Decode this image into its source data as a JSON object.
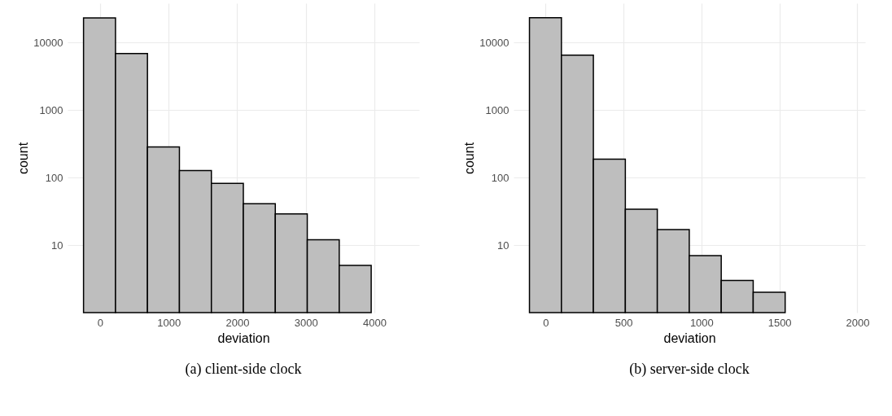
{
  "chart_data": [
    {
      "type": "histogram",
      "title": "(a) client-side clock",
      "xlabel": "deviation",
      "ylabel": "count",
      "log": "y",
      "grid": true,
      "color": "#bebebe",
      "bins": [
        -240,
        226,
        692,
        1158,
        1624,
        2090,
        2556,
        3022,
        3488,
        3954,
        4420
      ],
      "values": [
        23000,
        6850,
        284,
        127,
        82,
        41,
        29,
        12,
        5,
        null
      ],
      "xlim": [
        -473,
        4653
      ],
      "xticks": [
        0,
        1000,
        2000,
        3000,
        4000
      ],
      "ylim": [
        1,
        38000
      ],
      "yticks": [
        10,
        100,
        1000,
        10000
      ]
    },
    {
      "type": "histogram",
      "title": "(b) server-side clock",
      "xlabel": "deviation",
      "ylabel": "count",
      "log": "y",
      "grid": true,
      "color": "#bebebe",
      "bins": [
        -103,
        102,
        307,
        512,
        717,
        922,
        1127,
        1332,
        1537,
        1742,
        1947
      ],
      "values": [
        23200,
        6500,
        187,
        34,
        17,
        7,
        3,
        2,
        null,
        null
      ],
      "xlim": [
        -205,
        2050
      ],
      "xticks": [
        0,
        500,
        1000,
        1500,
        2000
      ],
      "ylim": [
        1,
        38000
      ],
      "yticks": [
        10,
        100,
        1000,
        10000
      ]
    }
  ]
}
